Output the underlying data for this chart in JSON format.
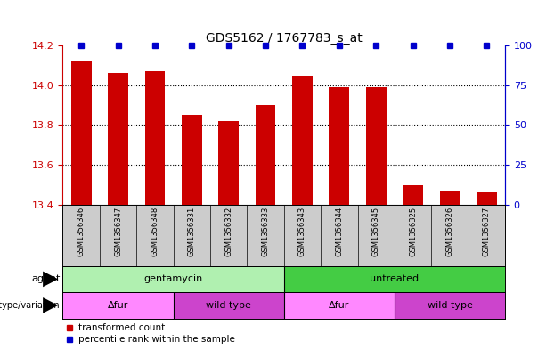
{
  "title": "GDS5162 / 1767783_s_at",
  "samples": [
    "GSM1356346",
    "GSM1356347",
    "GSM1356348",
    "GSM1356331",
    "GSM1356332",
    "GSM1356333",
    "GSM1356343",
    "GSM1356344",
    "GSM1356345",
    "GSM1356325",
    "GSM1356326",
    "GSM1356327"
  ],
  "transformed_counts": [
    14.12,
    14.06,
    14.07,
    13.85,
    13.82,
    13.9,
    14.05,
    13.99,
    13.99,
    13.5,
    13.47,
    13.46
  ],
  "percentile_ranks": [
    100,
    100,
    100,
    100,
    100,
    100,
    100,
    100,
    100,
    100,
    100,
    100
  ],
  "ylim_left": [
    13.4,
    14.2
  ],
  "ylim_right": [
    0,
    100
  ],
  "yticks_left": [
    13.4,
    13.6,
    13.8,
    14.0,
    14.2
  ],
  "yticks_right": [
    0,
    25,
    50,
    75,
    100
  ],
  "bar_color": "#cc0000",
  "percentile_color": "#0000cc",
  "agent_labels": [
    {
      "text": "gentamycin",
      "start": 0,
      "end": 5,
      "color": "#b0f0b0"
    },
    {
      "text": "untreated",
      "start": 6,
      "end": 11,
      "color": "#44cc44"
    }
  ],
  "genotype_labels": [
    {
      "text": "Δfur",
      "start": 0,
      "end": 2,
      "color": "#ff80ff"
    },
    {
      "text": "wild type",
      "start": 3,
      "end": 5,
      "color": "#dd66dd"
    },
    {
      "text": "Δfur",
      "start": 6,
      "end": 8,
      "color": "#ff80ff"
    },
    {
      "text": "wild type",
      "start": 9,
      "end": 11,
      "color": "#dd66dd"
    }
  ],
  "legend_items": [
    {
      "label": "transformed count",
      "color": "#cc0000"
    },
    {
      "label": "percentile rank within the sample",
      "color": "#0000cc"
    }
  ],
  "left_axis_color": "#cc0000",
  "right_axis_color": "#0000cc"
}
